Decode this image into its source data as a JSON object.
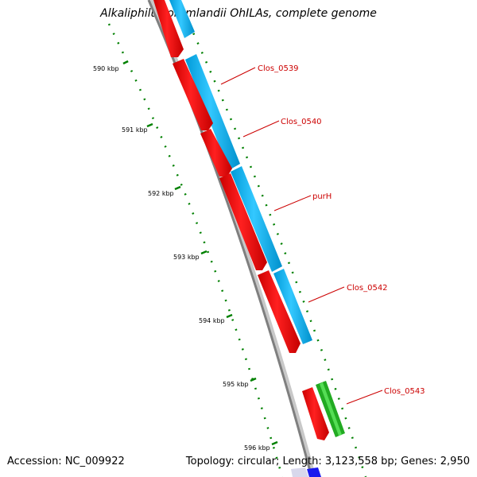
{
  "title": "Alkaliphilus oremlandii OhILAs, complete genome",
  "footer": {
    "accession": "Accession: NC_009922",
    "info": "Topology: circular; Length: 3,123,558 bp; Genes: 2,950"
  },
  "colors": {
    "forward_cds": "#00b4ff",
    "reverse_cds": "#ff0000",
    "other_gene": "#33cc33",
    "label": "#cc0000",
    "tick": "#008000",
    "backbone": "#808080"
  },
  "ruler": {
    "labels": [
      "590 kbp",
      "591 kbp",
      "592 kbp",
      "593 kbp",
      "594 kbp",
      "595 kbp",
      "596 kbp"
    ]
  },
  "gene_labels": [
    "Clos_0539",
    "Clos_0540",
    "purH",
    "Clos_0542",
    "Clos_0543"
  ]
}
